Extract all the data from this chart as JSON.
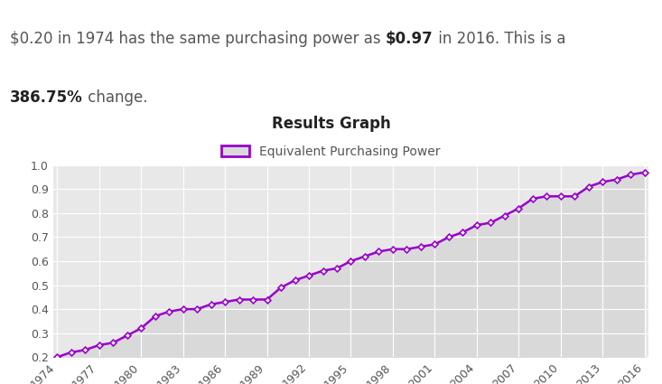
{
  "title": "Results Graph",
  "legend_label": "Equivalent Purchasing Power",
  "years": [
    1974,
    1975,
    1976,
    1977,
    1978,
    1979,
    1980,
    1981,
    1982,
    1983,
    1984,
    1985,
    1986,
    1987,
    1988,
    1989,
    1990,
    1991,
    1992,
    1993,
    1994,
    1995,
    1996,
    1997,
    1998,
    1999,
    2000,
    2001,
    2002,
    2003,
    2004,
    2005,
    2006,
    2007,
    2008,
    2009,
    2010,
    2011,
    2012,
    2013,
    2014,
    2015,
    2016
  ],
  "values": [
    0.2,
    0.22,
    0.23,
    0.25,
    0.26,
    0.29,
    0.32,
    0.37,
    0.39,
    0.4,
    0.4,
    0.42,
    0.43,
    0.44,
    0.44,
    0.44,
    0.49,
    0.52,
    0.54,
    0.56,
    0.57,
    0.6,
    0.62,
    0.64,
    0.65,
    0.65,
    0.66,
    0.67,
    0.7,
    0.72,
    0.75,
    0.76,
    0.79,
    0.82,
    0.86,
    0.87,
    0.87,
    0.87,
    0.91,
    0.93,
    0.94,
    0.96,
    0.97
  ],
  "line_color": "#9900cc",
  "fill_color": "#d9d9d9",
  "marker": "D",
  "marker_size": 3.5,
  "ylim": [
    0.2,
    1.0
  ],
  "yticks": [
    0.2,
    0.3,
    0.4,
    0.5,
    0.6,
    0.7,
    0.8,
    0.9,
    1.0
  ],
  "xtick_years": [
    1974,
    1977,
    1980,
    1983,
    1986,
    1989,
    1992,
    1995,
    1998,
    2001,
    2004,
    2007,
    2010,
    2013,
    2016
  ],
  "plot_bg_color": "#e8e8e8",
  "fig_bg_color": "#ffffff",
  "title_bg_color": "#dedede",
  "grid_color": "#ffffff",
  "header_text_color": "#555555",
  "header_bold_color": "#222222",
  "title_fontsize": 12,
  "tick_fontsize": 9,
  "header_fontsize": 12
}
